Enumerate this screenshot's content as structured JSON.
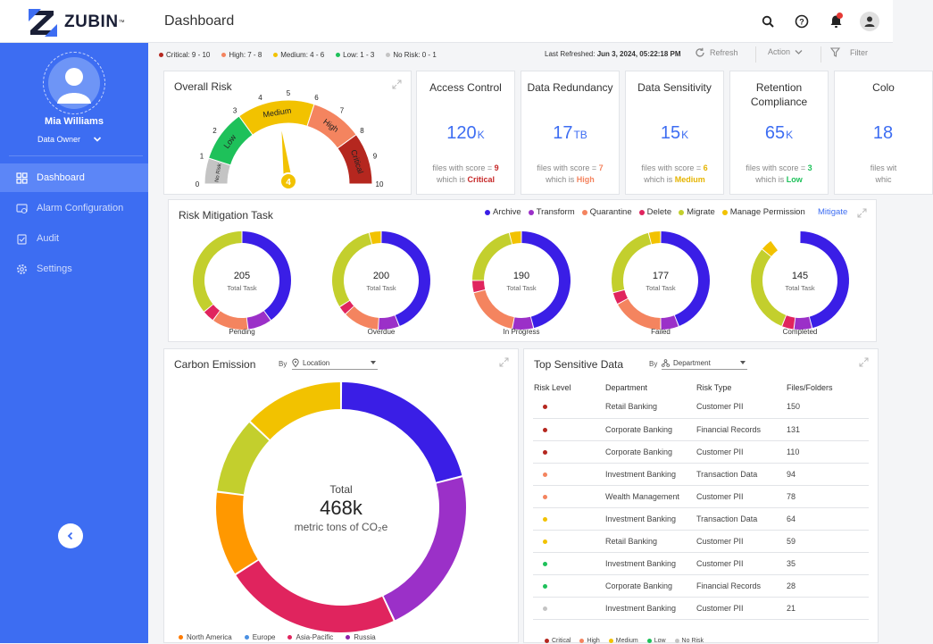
{
  "app": {
    "name": "ZUBIN",
    "page_title": "Dashboard"
  },
  "user": {
    "name": "Mia Williams",
    "role": "Data Owner"
  },
  "nav": [
    {
      "label": "Dashboard",
      "icon": "dashboard-icon"
    },
    {
      "label": "Alarm Configuration",
      "icon": "alarm-config-icon"
    },
    {
      "label": "Audit",
      "icon": "audit-icon"
    },
    {
      "label": "Settings",
      "icon": "settings-icon"
    }
  ],
  "risk_legend": [
    {
      "label": "Critical:  9 - 10",
      "color": "#b5271f"
    },
    {
      "label": "High:  7 - 8",
      "color": "#f4845f"
    },
    {
      "label": "Medium:  4 - 6",
      "color": "#f2c200"
    },
    {
      "label": "Low:  1 - 3",
      "color": "#1ec15a"
    },
    {
      "label": "No Risk:  0 - 1",
      "color": "#c4c4c4"
    }
  ],
  "last_refreshed_label": "Last Refreshed:",
  "last_refreshed_value": "Jun 3, 2024, 05:22:18 PM",
  "toolbar": {
    "refresh": "Refresh",
    "action": "Action",
    "filter": "Filter"
  },
  "overall_risk": {
    "title": "Overall Risk",
    "value": "4",
    "ticks": [
      "0",
      "1",
      "2",
      "3",
      "4",
      "5",
      "6",
      "7",
      "8",
      "9",
      "10"
    ],
    "bands": [
      "No Risk",
      "Low",
      "Medium",
      "High",
      "Critical"
    ]
  },
  "metrics": [
    {
      "title": "Access Control",
      "value": "120",
      "unit": "K",
      "foot1": "files with score = ",
      "score": "9",
      "foot2": "which is ",
      "level": "Critical",
      "color": "#c62828"
    },
    {
      "title": "Data Redundancy",
      "value": "17",
      "unit": "TB",
      "foot1": "files with score = ",
      "score": "7",
      "foot2": "which is ",
      "level": "High",
      "color": "#f4845f"
    },
    {
      "title": "Data Sensitivity",
      "value": "15",
      "unit": "K",
      "foot1": "files with score = ",
      "score": "6",
      "foot2": "which is ",
      "level": "Medium",
      "color": "#e5b400"
    },
    {
      "title": "Retention Compliance",
      "value": "65",
      "unit": "K",
      "foot1": "files with score = ",
      "score": "3",
      "foot2": "which is ",
      "level": "Low",
      "color": "#1ec15a"
    },
    {
      "title": "Colo",
      "value": "18",
      "unit": "",
      "foot1": "files wit",
      "score": "",
      "foot2": "whic",
      "level": "",
      "color": "#333"
    }
  ],
  "risk_mitigation": {
    "title": "Risk Mitigation Task",
    "mitigate_label": "Mitigate",
    "legend": [
      {
        "label": "Archive",
        "color": "#3a1ee6"
      },
      {
        "label": "Transform",
        "color": "#9b30c8"
      },
      {
        "label": "Quarantine",
        "color": "#f4845f"
      },
      {
        "label": "Delete",
        "color": "#e0245e"
      },
      {
        "label": "Migrate",
        "color": "#c3cf2d"
      },
      {
        "label": "Manage Permission",
        "color": "#f2c200"
      }
    ],
    "donuts": [
      {
        "total": "205",
        "total_label": "Total Task",
        "label": "Pending",
        "values": [
          40,
          8,
          12,
          4,
          36,
          0
        ]
      },
      {
        "total": "200",
        "total_label": "Total Task",
        "label": "Overdue",
        "values": [
          44,
          7,
          12,
          3,
          30,
          4
        ]
      },
      {
        "total": "190",
        "total_label": "Total Task",
        "label": "In Progress",
        "values": [
          46,
          7,
          18,
          4,
          21,
          4
        ]
      },
      {
        "total": "177",
        "total_label": "Total Task",
        "label": "Failed",
        "values": [
          44,
          6,
          17,
          4,
          25,
          4
        ]
      },
      {
        "total": "145",
        "total_label": "Total Task",
        "label": "Completed",
        "values": [
          46,
          6,
          0,
          4,
          30,
          4
        ]
      }
    ]
  },
  "carbon": {
    "title": "Carbon Emission",
    "by_label": "By",
    "select_value": "Location",
    "total_label": "Total",
    "total_value": "468k",
    "unit_text": "metric tons of CO₂e",
    "legend": [
      {
        "label": "North America",
        "color": "#ff7b00"
      },
      {
        "label": "Europe",
        "color": "#4a90e2"
      },
      {
        "label": "Asia-Pacific",
        "color": "#e0245e"
      },
      {
        "label": "Russia",
        "color": "#8e24aa"
      }
    ],
    "segments": [
      {
        "color": "#3a1ee6",
        "value": 21
      },
      {
        "color": "#9b30c8",
        "value": 22
      },
      {
        "color": "#e0245e",
        "value": 23
      },
      {
        "color": "#ff9800",
        "value": 11
      },
      {
        "color": "#c3cf2d",
        "value": 10
      },
      {
        "color": "#f2c200",
        "value": 13
      }
    ]
  },
  "sensitive": {
    "title": "Top Sensitive Data",
    "by_label": "By",
    "select_value": "Department",
    "headers": [
      "Risk Level",
      "Department",
      "Risk Type",
      "Files/Folders"
    ],
    "rows": [
      {
        "color": "#b5271f",
        "department": "Retail Banking",
        "type": "Customer PII",
        "count": "150"
      },
      {
        "color": "#b5271f",
        "department": "Corporate Banking",
        "type": "Financial Records",
        "count": "131"
      },
      {
        "color": "#b5271f",
        "department": "Corporate Banking",
        "type": "Customer PII",
        "count": "110"
      },
      {
        "color": "#f4845f",
        "department": "Investment Banking",
        "type": "Transaction Data",
        "count": "94"
      },
      {
        "color": "#f4845f",
        "department": "Wealth Management",
        "type": "Customer PII",
        "count": "78"
      },
      {
        "color": "#f2c200",
        "department": "Investment Banking",
        "type": "Transaction Data",
        "count": "64"
      },
      {
        "color": "#f2c200",
        "department": "Retail Banking",
        "type": "Customer PII",
        "count": "59"
      },
      {
        "color": "#1ec15a",
        "department": "Investment Banking",
        "type": "Customer PII",
        "count": "35"
      },
      {
        "color": "#1ec15a",
        "department": "Corporate Banking",
        "type": "Financial Records",
        "count": "28"
      },
      {
        "color": "#c4c4c4",
        "department": "Investment Banking",
        "type": "Customer PII",
        "count": "21"
      }
    ],
    "legend": [
      {
        "label": "Critical",
        "color": "#b5271f"
      },
      {
        "label": "High",
        "color": "#f4845f"
      },
      {
        "label": "Medium",
        "color": "#f2c200"
      },
      {
        "label": "Low",
        "color": "#1ec15a"
      },
      {
        "label": "No Risk",
        "color": "#c4c4c4"
      }
    ]
  }
}
